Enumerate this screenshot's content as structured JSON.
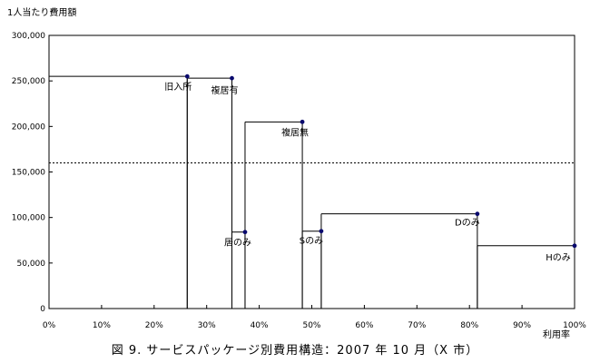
{
  "chart_data": {
    "type": "step",
    "ylabel": "1人当たり費用額",
    "xlabel": "利用率",
    "caption": "図 9. サービスパッケージ別費用構造：2007 年 10 月（X 市）",
    "xlim": [
      0,
      100
    ],
    "ylim": [
      0,
      300000
    ],
    "x_ticks": [
      "0%",
      "10%",
      "20%",
      "30%",
      "40%",
      "50%",
      "60%",
      "70%",
      "80%",
      "90%",
      "100%"
    ],
    "y_ticks": [
      "0",
      "50,000",
      "100,000",
      "150,000",
      "200,000",
      "250,000",
      "300,000"
    ],
    "reference_line": {
      "value": 160000,
      "style": "dotted"
    },
    "packages": [
      {
        "label": "旧入所",
        "start": 0,
        "end": 26.3,
        "value": 255000
      },
      {
        "label": "複居有",
        "start": 26.3,
        "end": 34.8,
        "value": 253000
      },
      {
        "label": "居のみ",
        "start": 34.8,
        "end": 37.3,
        "value": 84000
      },
      {
        "label": "複居無",
        "start": 37.3,
        "end": 48.2,
        "value": 205000
      },
      {
        "label": "Sのみ",
        "start": 48.2,
        "end": 51.8,
        "value": 85000
      },
      {
        "label": "Dのみ",
        "start": 51.8,
        "end": 81.5,
        "value": 104000
      },
      {
        "label": "Hのみ",
        "start": 81.5,
        "end": 100,
        "value": 69000
      }
    ],
    "colors": {
      "line": "#000000",
      "marker": "#0a0a6e"
    }
  }
}
